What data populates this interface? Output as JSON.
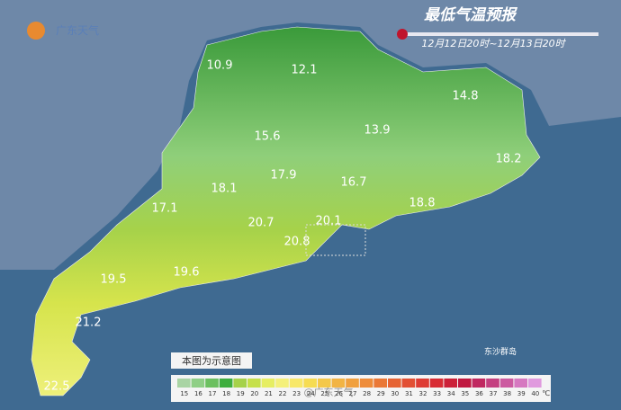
{
  "logo": "广东天气",
  "title": "最低气温预报",
  "subtitle": "12月12日20时~12月13日20时",
  "map_labels": [
    10.9,
    12.1,
    14.8,
    15.6,
    13.9,
    18.2,
    17.9,
    16.7,
    18.1,
    18.8,
    17.1,
    20.7,
    20.1,
    20.8,
    19.5,
    19.6,
    21.2,
    22.5
  ],
  "island_label": "东沙群岛",
  "note": "本图为示意图",
  "watermark": "@广东天气",
  "legend": {
    "unit": "℃",
    "items": [
      {
        "value": 15,
        "color": "#a9d4a4"
      },
      {
        "value": 16,
        "color": "#8fcf86"
      },
      {
        "value": 17,
        "color": "#6cc060"
      },
      {
        "value": 18,
        "color": "#3fae3f"
      },
      {
        "value": 19,
        "color": "#a6d24a"
      },
      {
        "value": 20,
        "color": "#c6e04a"
      },
      {
        "value": 21,
        "color": "#e6ee62"
      },
      {
        "value": 22,
        "color": "#f4f07a"
      },
      {
        "value": 23,
        "color": "#f8e86a"
      },
      {
        "value": 24,
        "color": "#f6dc52"
      },
      {
        "value": 25,
        "color": "#f4c84a"
      },
      {
        "value": 26,
        "color": "#f2b444"
      },
      {
        "value": 27,
        "color": "#f0a03e"
      },
      {
        "value": 28,
        "color": "#ee8c3a"
      },
      {
        "value": 29,
        "color": "#ea7836"
      },
      {
        "value": 30,
        "color": "#e66434"
      },
      {
        "value": 31,
        "color": "#e25034"
      },
      {
        "value": 32,
        "color": "#de3c34"
      },
      {
        "value": 33,
        "color": "#d82c34"
      },
      {
        "value": 34,
        "color": "#cc2038"
      },
      {
        "value": 35,
        "color": "#c01840"
      },
      {
        "value": 36,
        "color": "#c02860"
      },
      {
        "value": 37,
        "color": "#c44080"
      },
      {
        "value": 38,
        "color": "#cc5aa0"
      },
      {
        "value": 39,
        "color": "#d678c0"
      },
      {
        "value": 40,
        "color": "#e09ade"
      }
    ]
  }
}
